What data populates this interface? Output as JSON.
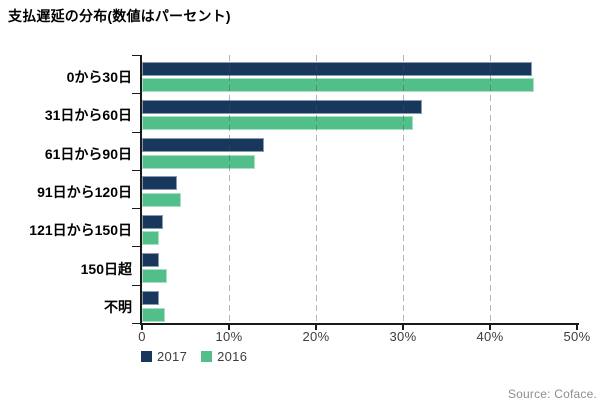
{
  "title": "支払遅延の分布(数値はパーセント)",
  "source": "Source: Coface.",
  "colors": {
    "series_2017": "#17375C",
    "series_2016": "#52BE8A",
    "axis": "#1a1a1a",
    "gridline": "#4b4b4b",
    "tick_label": "#3d3d3d",
    "source_text": "#8e8e8e"
  },
  "legend": {
    "items": [
      {
        "label": "2017",
        "color": "#17375C"
      },
      {
        "label": "2016",
        "color": "#52BE8A"
      }
    ]
  },
  "chart_data": {
    "type": "bar",
    "orientation": "horizontal",
    "title": "支払遅延の分布(数値はパーセント)",
    "categories": [
      "0から30日",
      "31日から60日",
      "61日から90日",
      "91日から120日",
      "121日から150日",
      "150日超",
      "不明"
    ],
    "series": [
      {
        "name": "2017",
        "color": "#17375C",
        "values": [
          44.8,
          32.2,
          14.0,
          4.0,
          2.4,
          1.9,
          1.9
        ]
      },
      {
        "name": "2016",
        "color": "#52BE8A",
        "values": [
          45.0,
          31.2,
          13.0,
          4.5,
          1.9,
          2.9,
          2.7
        ]
      }
    ],
    "xlim": [
      0,
      50
    ],
    "xticks": [
      0,
      10,
      20,
      30,
      40,
      50
    ],
    "xtick_labels": [
      "0",
      "10%",
      "20%",
      "30%",
      "40%",
      "50%"
    ],
    "grid": "dashed-vertical-at-10-20-30-40",
    "legend_position": "bottom-left",
    "xlabel": "",
    "ylabel": ""
  }
}
